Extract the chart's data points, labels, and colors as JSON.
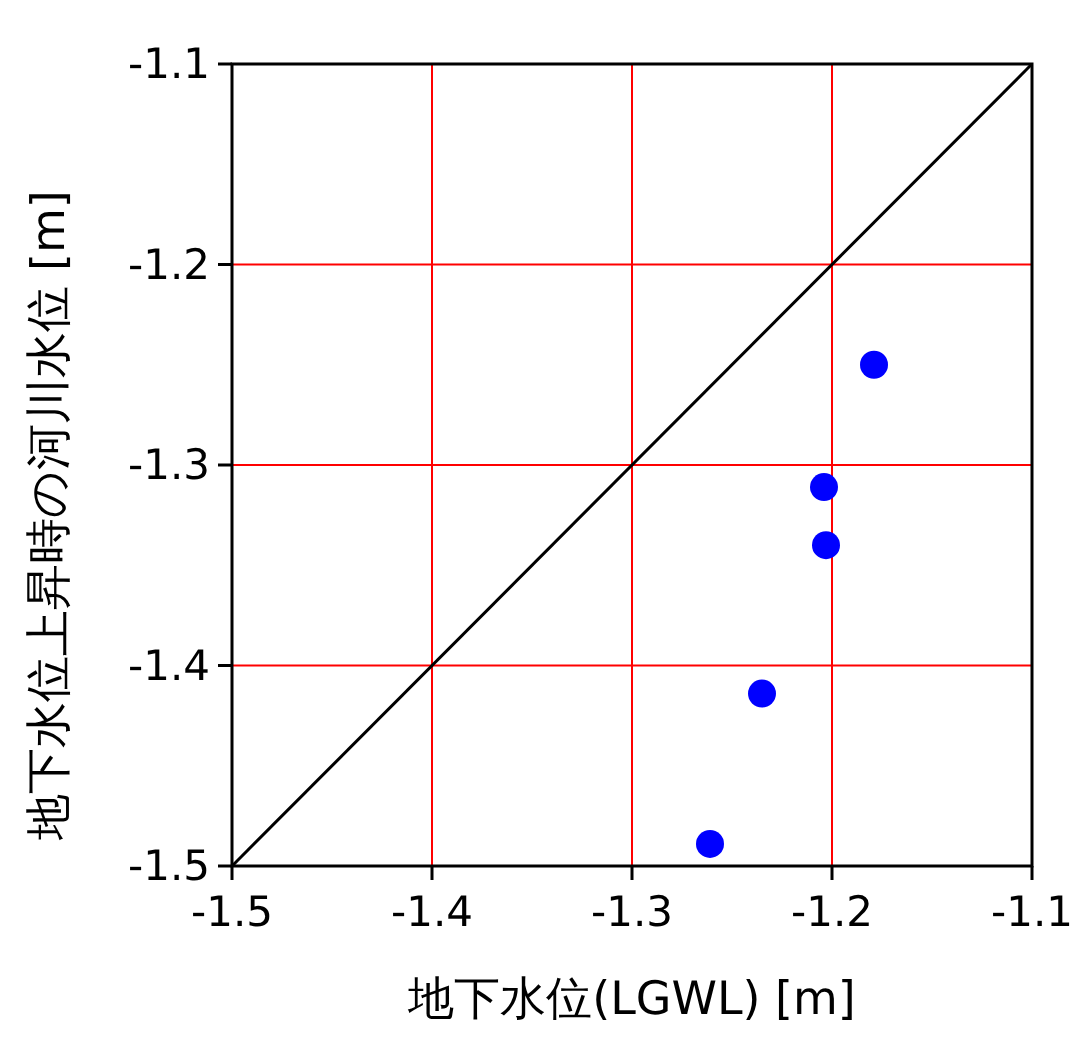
{
  "chart_data": {
    "type": "scatter",
    "xlabel": "地下水位(LGWL) [m]",
    "ylabel": "地下水位上昇時の河川水位 [m]",
    "xlim": [
      -1.5,
      -1.1
    ],
    "ylim": [
      -1.5,
      -1.1
    ],
    "xticks": [
      -1.5,
      -1.4,
      -1.3,
      -1.2,
      -1.1
    ],
    "yticks": [
      -1.5,
      -1.4,
      -1.3,
      -1.2,
      -1.1
    ],
    "grid": true,
    "marker": "circle",
    "series": [
      {
        "color": "#0000ff",
        "x": [
          -1.261,
          -1.235,
          -1.203,
          -1.204,
          -1.179
        ],
        "values": [
          -1.489,
          -1.414,
          -1.34,
          -1.311,
          -1.25
        ]
      },
      {
        "type": "line",
        "marker": "none",
        "color": "#000000",
        "x": [
          -1.5,
          -1.1
        ],
        "values": [
          -1.5,
          -1.1
        ]
      }
    ]
  }
}
